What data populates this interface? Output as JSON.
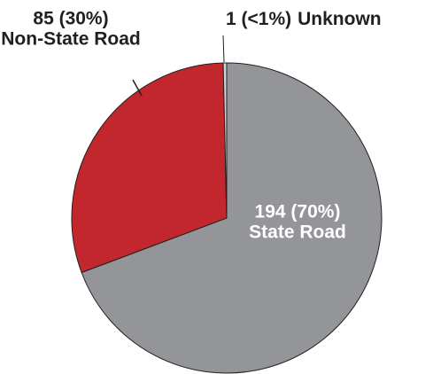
{
  "chart_data": {
    "type": "pie",
    "categories": [
      "State Road",
      "Non-State Road",
      "Unknown"
    ],
    "values": [
      194,
      85,
      1
    ],
    "value_labels": [
      "194 (70%)",
      "85 (30%)",
      "1 (<1%)"
    ],
    "colors": [
      "#939598",
      "#c1272d",
      "#d1d2d4"
    ]
  }
}
